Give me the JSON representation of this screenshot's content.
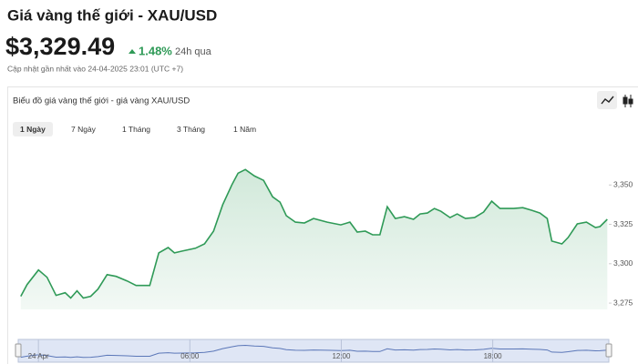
{
  "header": {
    "title": "Giá vàng thế giới - XAU/USD",
    "price": "$3,329.49",
    "change": "1.48%",
    "period": "24h qua",
    "updated": "Cập nhật gần nhất vào 24-04-2025 23:01 (UTC +7)"
  },
  "card": {
    "title": "Biểu đồ giá vàng thế giới - giá vàng XAU/USD",
    "tabs": [
      "1 Ngày",
      "7 Ngày",
      "1 Tháng",
      "3 Tháng",
      "1 Năm"
    ]
  },
  "chart_data": {
    "type": "area",
    "color": "#2f9a57",
    "grid": false,
    "x": [
      -0.7,
      -0.45,
      0.0,
      0.34,
      0.7,
      1.06,
      1.28,
      1.53,
      1.78,
      2.07,
      2.36,
      2.72,
      3.08,
      3.51,
      3.87,
      4.41,
      4.77,
      5.14,
      5.39,
      5.68,
      6.22,
      6.58,
      6.94,
      7.3,
      7.66,
      7.91,
      8.2,
      8.56,
      8.92,
      9.28,
      9.57,
      9.82,
      10.18,
      10.54,
      10.9,
      11.44,
      11.98,
      12.34,
      12.63,
      12.95,
      13.24,
      13.53,
      13.82,
      14.14,
      14.5,
      14.86,
      15.12,
      15.41,
      15.69,
      15.95,
      16.31,
      16.59,
      16.92,
      17.28,
      17.64,
      17.96,
      18.29,
      18.83,
      19.19,
      19.55,
      19.87,
      20.16,
      20.34,
      20.74,
      20.99,
      21.35,
      21.71,
      22.07,
      22.25,
      22.54
    ],
    "values": [
      3279.3,
      3286.8,
      3296.0,
      3291.4,
      3279.9,
      3281.6,
      3278.2,
      3282.8,
      3278.2,
      3279.3,
      3283.9,
      3293.1,
      3292.0,
      3289.1,
      3286.2,
      3286.2,
      3306.9,
      3310.3,
      3306.9,
      3308.0,
      3309.8,
      3312.6,
      3320.7,
      3337.4,
      3350.0,
      3357.5,
      3359.8,
      3355.7,
      3352.9,
      3342.5,
      3339.1,
      3330.5,
      3326.4,
      3325.9,
      3328.7,
      3326.4,
      3324.7,
      3326.4,
      3320.1,
      3320.7,
      3318.4,
      3318.4,
      3336.2,
      3328.7,
      3329.9,
      3328.2,
      3331.6,
      3332.2,
      3335.1,
      3333.3,
      3329.3,
      3331.6,
      3328.7,
      3329.3,
      3332.8,
      3339.7,
      3335.1,
      3335.1,
      3335.6,
      3333.9,
      3332.2,
      3328.7,
      3314.4,
      3312.6,
      3316.7,
      3325.3,
      3326.4,
      3323.0,
      3323.6,
      3328.2
    ],
    "xlim": [
      -0.8,
      22.6
    ],
    "xticks": [
      {
        "value": 0,
        "label": "24 Apr"
      },
      {
        "value": 6,
        "label": "06:00"
      },
      {
        "value": 12,
        "label": "12:00"
      },
      {
        "value": 18,
        "label": "18:00"
      }
    ],
    "ylim": [
      3271,
      3375
    ],
    "yticks": [
      {
        "value": 3275,
        "label": "3,275"
      },
      {
        "value": 3300,
        "label": "3,300"
      },
      {
        "value": 3325,
        "label": "3,325"
      },
      {
        "value": 3350,
        "label": "3,350"
      }
    ]
  }
}
